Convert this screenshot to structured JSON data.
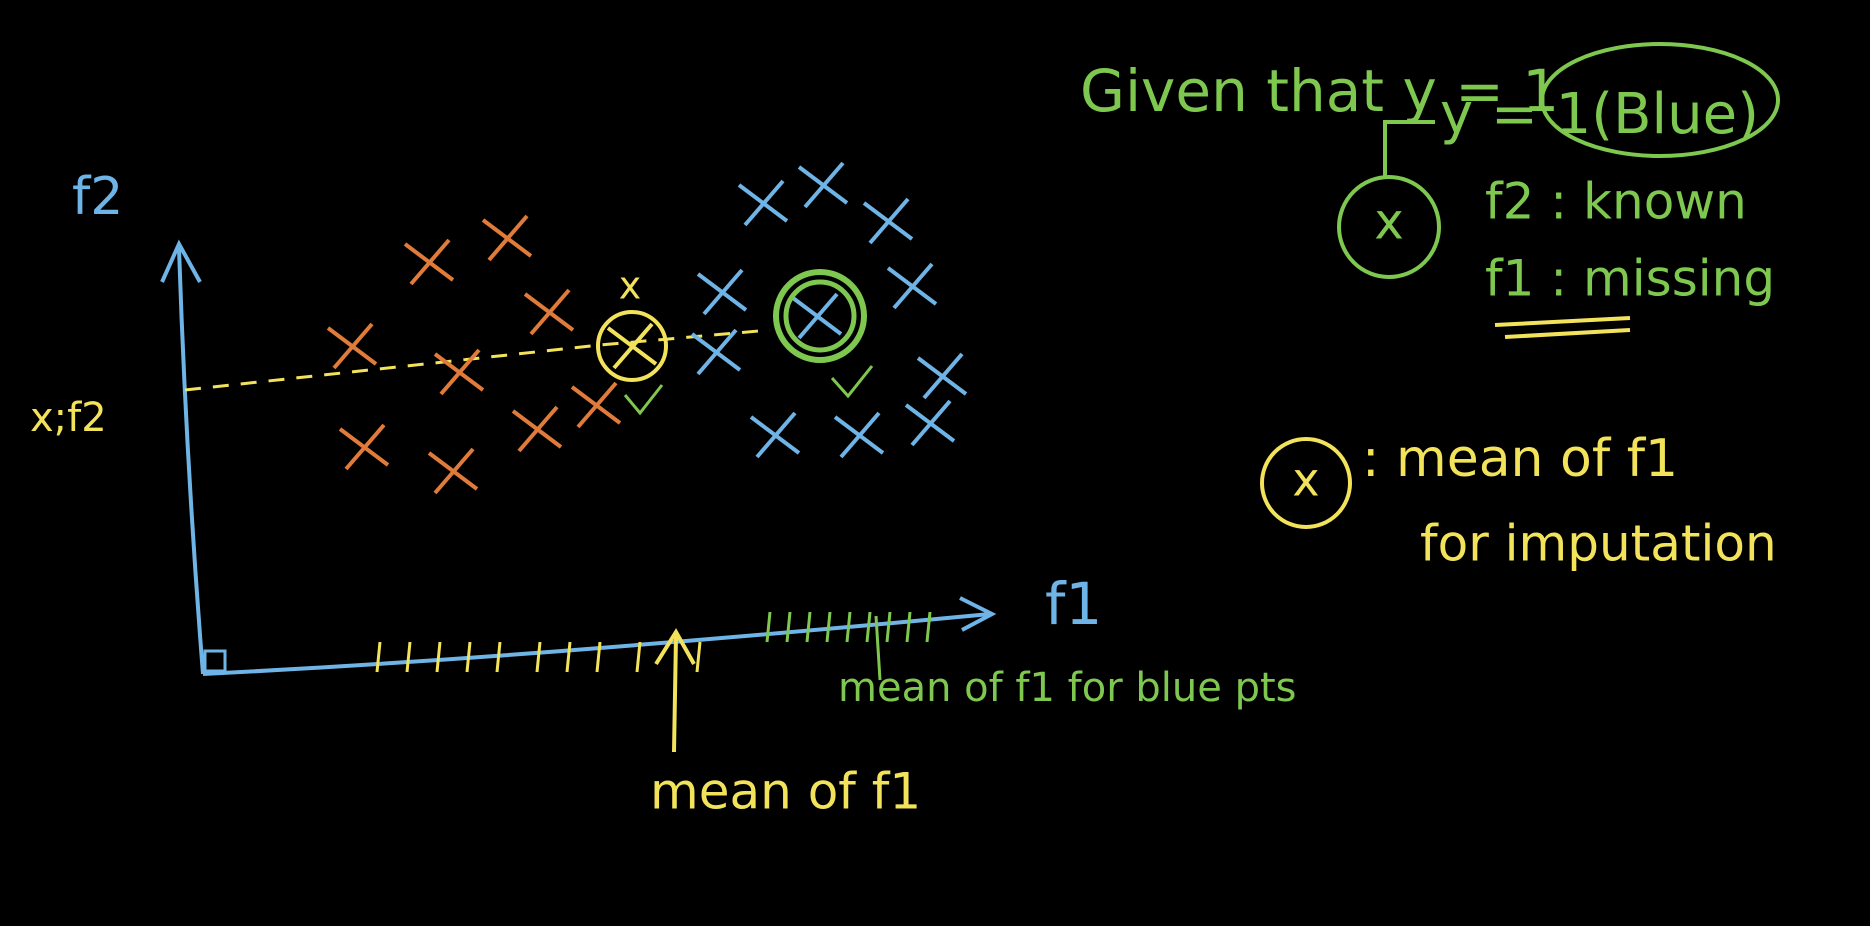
{
  "axes": {
    "y_label": "f2",
    "x_label": "f1",
    "point_label": "x;f2"
  },
  "point_marker": "x",
  "circled_point": "x",
  "given": {
    "title": "Given that y = 1",
    "class": "y = 1(Blue)",
    "feature_point": "x",
    "known": "f2 : known",
    "missing": "f1 : missing"
  },
  "imputation": {
    "point": "x",
    "line1": ": mean of f1",
    "line2": "for imputation"
  },
  "axis_notes": {
    "blue_mean": "mean of f1 for blue pts",
    "overall_mean": "mean of f1"
  }
}
